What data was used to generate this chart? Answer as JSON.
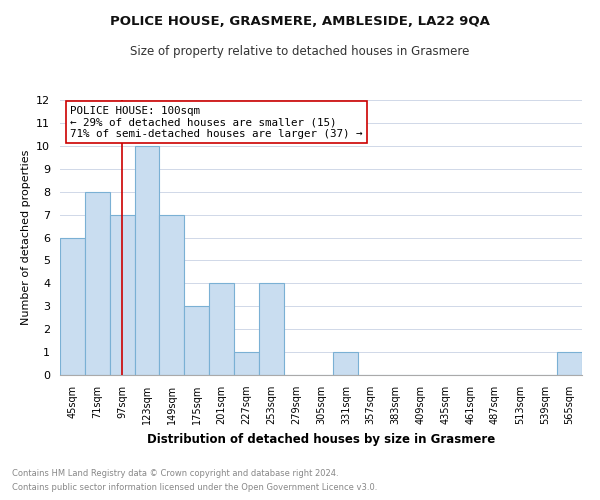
{
  "title": "POLICE HOUSE, GRASMERE, AMBLESIDE, LA22 9QA",
  "subtitle": "Size of property relative to detached houses in Grasmere",
  "xlabel": "Distribution of detached houses by size in Grasmere",
  "ylabel": "Number of detached properties",
  "bin_labels": [
    "45sqm",
    "71sqm",
    "97sqm",
    "123sqm",
    "149sqm",
    "175sqm",
    "201sqm",
    "227sqm",
    "253sqm",
    "279sqm",
    "305sqm",
    "331sqm",
    "357sqm",
    "383sqm",
    "409sqm",
    "435sqm",
    "461sqm",
    "487sqm",
    "513sqm",
    "539sqm",
    "565sqm"
  ],
  "bar_values": [
    6,
    8,
    7,
    10,
    7,
    3,
    4,
    1,
    4,
    0,
    0,
    1,
    0,
    0,
    0,
    0,
    0,
    0,
    0,
    0,
    1
  ],
  "highlight_index": 2,
  "bar_color": "#c9ddf0",
  "bar_edge_color": "#7ab0d4",
  "highlight_line_color": "#cc0000",
  "ylim": [
    0,
    12
  ],
  "yticks": [
    0,
    1,
    2,
    3,
    4,
    5,
    6,
    7,
    8,
    9,
    10,
    11,
    12
  ],
  "annotation_box_text": "POLICE HOUSE: 100sqm\n← 29% of detached houses are smaller (15)\n71% of semi-detached houses are larger (37) →",
  "footnote_line1": "Contains HM Land Registry data © Crown copyright and database right 2024.",
  "footnote_line2": "Contains public sector information licensed under the Open Government Licence v3.0.",
  "bg_color": "#ffffff",
  "grid_color": "#d0d8e8"
}
